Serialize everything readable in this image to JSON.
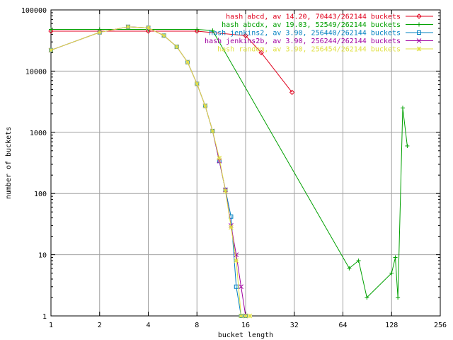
{
  "chart_data": {
    "type": "line",
    "title": "",
    "xlabel": "bucket length",
    "ylabel": "number of buckets",
    "xscale": "log2",
    "yscale": "log10",
    "xlim": [
      1,
      256
    ],
    "ylim": [
      1,
      100000
    ],
    "grid": true,
    "legend_position": "top-right",
    "x_ticks": [
      {
        "v": 1,
        "label": "1"
      },
      {
        "v": 2,
        "label": "2"
      },
      {
        "v": 4,
        "label": "4"
      },
      {
        "v": 8,
        "label": "8"
      },
      {
        "v": 16,
        "label": "16"
      },
      {
        "v": 32,
        "label": "32"
      },
      {
        "v": 64,
        "label": "64"
      },
      {
        "v": 128,
        "label": "128"
      },
      {
        "v": 256,
        "label": "256"
      }
    ],
    "y_ticks": [
      {
        "v": 1,
        "label": "1"
      },
      {
        "v": 10,
        "label": "10"
      },
      {
        "v": 100,
        "label": "100"
      },
      {
        "v": 1000,
        "label": "1000"
      },
      {
        "v": 10000,
        "label": "10000"
      },
      {
        "v": 100000,
        "label": "100000"
      }
    ],
    "series": [
      {
        "name": "hash abcd, av 14.20, 70443/262144 buckets",
        "color": "#e0001c",
        "marker": "diamond",
        "x": [
          1,
          2,
          4,
          8,
          16,
          20,
          31
        ],
        "y": [
          45000,
          45000,
          45000,
          45000,
          38000,
          20000,
          4500
        ]
      },
      {
        "name": "hash abcdx, av 19.03, 52549/262144 buckets",
        "color": "#00a000",
        "marker": "plus",
        "x": [
          1,
          2,
          4,
          8,
          10,
          70,
          80,
          90,
          128,
          135,
          140,
          150,
          160
        ],
        "y": [
          48000,
          48000,
          48000,
          48000,
          46000,
          6,
          8,
          2,
          5,
          9,
          2,
          2500,
          600
        ]
      },
      {
        "name": "hash jenkins2, av 3.90, 256440/262144 buckets",
        "color": "#0080c0",
        "marker": "square",
        "x": [
          1,
          2,
          3,
          4,
          5,
          6,
          7,
          8,
          9,
          10,
          11,
          12,
          13,
          14,
          15,
          16
        ],
        "y": [
          22000,
          43000,
          53000,
          51000,
          38000,
          25000,
          14000,
          6200,
          2700,
          1050,
          340,
          115,
          42,
          3,
          1,
          1
        ]
      },
      {
        "name": "hash jenkins2b, av 3.90, 256244/262144 buckets",
        "color": "#a000a0",
        "marker": "x",
        "x": [
          1,
          2,
          3,
          4,
          5,
          6,
          7,
          8,
          9,
          10,
          11,
          12,
          13,
          14,
          15,
          16
        ],
        "y": [
          22000,
          43000,
          53000,
          51000,
          38000,
          25000,
          14000,
          6200,
          2700,
          1050,
          340,
          115,
          30,
          10,
          3,
          1
        ]
      },
      {
        "name": "hash random, av 3.90, 256454/262144 buckets",
        "color": "#e0e040",
        "marker": "star",
        "x": [
          1,
          2,
          3,
          4,
          5,
          6,
          7,
          8,
          9,
          10,
          11,
          12,
          13,
          14,
          15,
          16,
          17
        ],
        "y": [
          22000,
          43000,
          53000,
          51000,
          38000,
          25000,
          14000,
          6200,
          2700,
          1050,
          380,
          110,
          28,
          8,
          1,
          1,
          1
        ]
      }
    ]
  }
}
